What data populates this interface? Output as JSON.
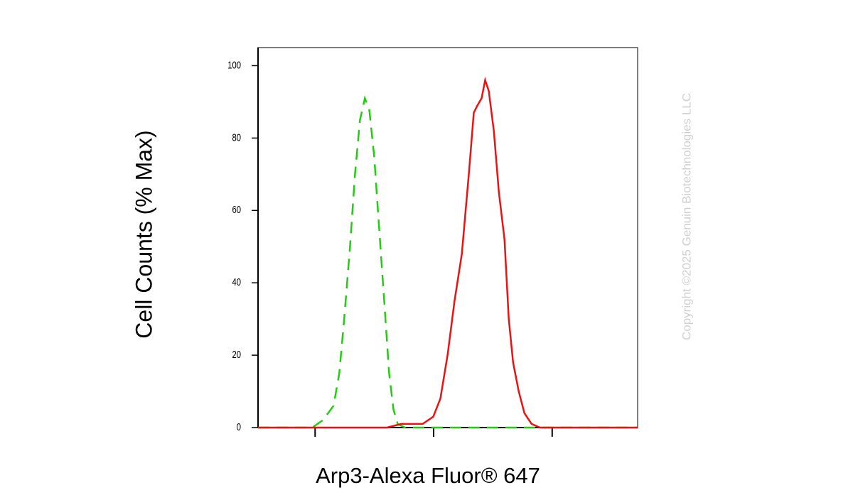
{
  "chart_data": {
    "type": "line",
    "y_label": "Cell Counts (% Max)",
    "x_label": "Arp3-Alexa Fluor® 647",
    "watermark": "Copyright ©2025 Genuin Biotechnologies LLC",
    "x_scale": "log",
    "xlim": [
      33,
      52600
    ],
    "xticks": [
      100,
      1000,
      10000
    ],
    "ylim": [
      0,
      105
    ],
    "yticks": [
      0,
      20,
      40,
      60,
      80,
      100
    ],
    "series": [
      {
        "color": "#22cc11",
        "dash": true,
        "x": [
          33,
          94.6,
          116,
          143,
          160,
          176,
          197,
          217,
          239,
          263,
          286,
          315,
          347,
          383,
          421,
          458,
          498,
          571,
          52600
        ],
        "values": [
          0,
          0,
          2,
          6,
          15,
          30,
          50,
          70,
          85,
          91,
          88,
          75,
          55,
          35,
          15,
          5,
          1,
          0,
          0
        ]
      },
      {
        "color": "#ee1111",
        "dash": false,
        "x": [
          33,
          404,
          533,
          807,
          993,
          1140,
          1310,
          1500,
          1730,
          1980,
          2180,
          2340,
          2540,
          2720,
          2920,
          3220,
          3550,
          3960,
          4300,
          4680,
          5220,
          5830,
          6700,
          7900,
          52600
        ],
        "values": [
          0,
          0,
          1,
          1,
          3,
          8,
          20,
          35,
          48,
          70,
          87,
          89,
          91,
          96,
          93,
          82,
          65,
          52,
          30,
          18,
          10,
          4,
          1,
          0,
          0
        ]
      }
    ]
  }
}
